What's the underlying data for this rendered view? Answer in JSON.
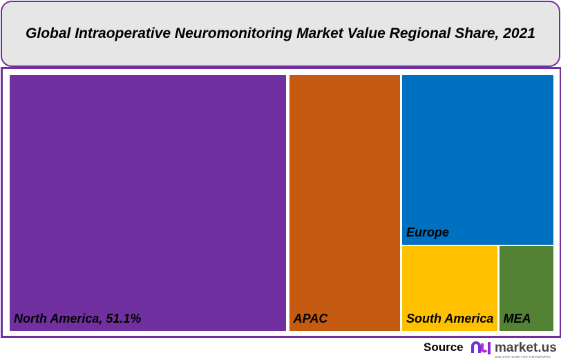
{
  "chart_data": {
    "type": "treemap",
    "title": "Global Intraoperative Neuromonitoring Market Value Regional Share, 2021",
    "categories": [
      "North America",
      "APAC",
      "Europe",
      "South America",
      "MEA"
    ],
    "values": [
      51.1,
      20.7,
      18.7,
      6.0,
      3.5
    ],
    "labels": [
      "North America, 51.1%",
      "APAC",
      "Europe",
      "South America",
      "MEA"
    ],
    "colors": [
      "#7030a0",
      "#c55a11",
      "#0070c0",
      "#ffc000",
      "#548235"
    ],
    "unit": "%"
  },
  "footer": {
    "source_label": "Source",
    "logo_text": "market.us",
    "logo_tagline": "ONE STOP SHOP FOR THE REPORTS"
  }
}
